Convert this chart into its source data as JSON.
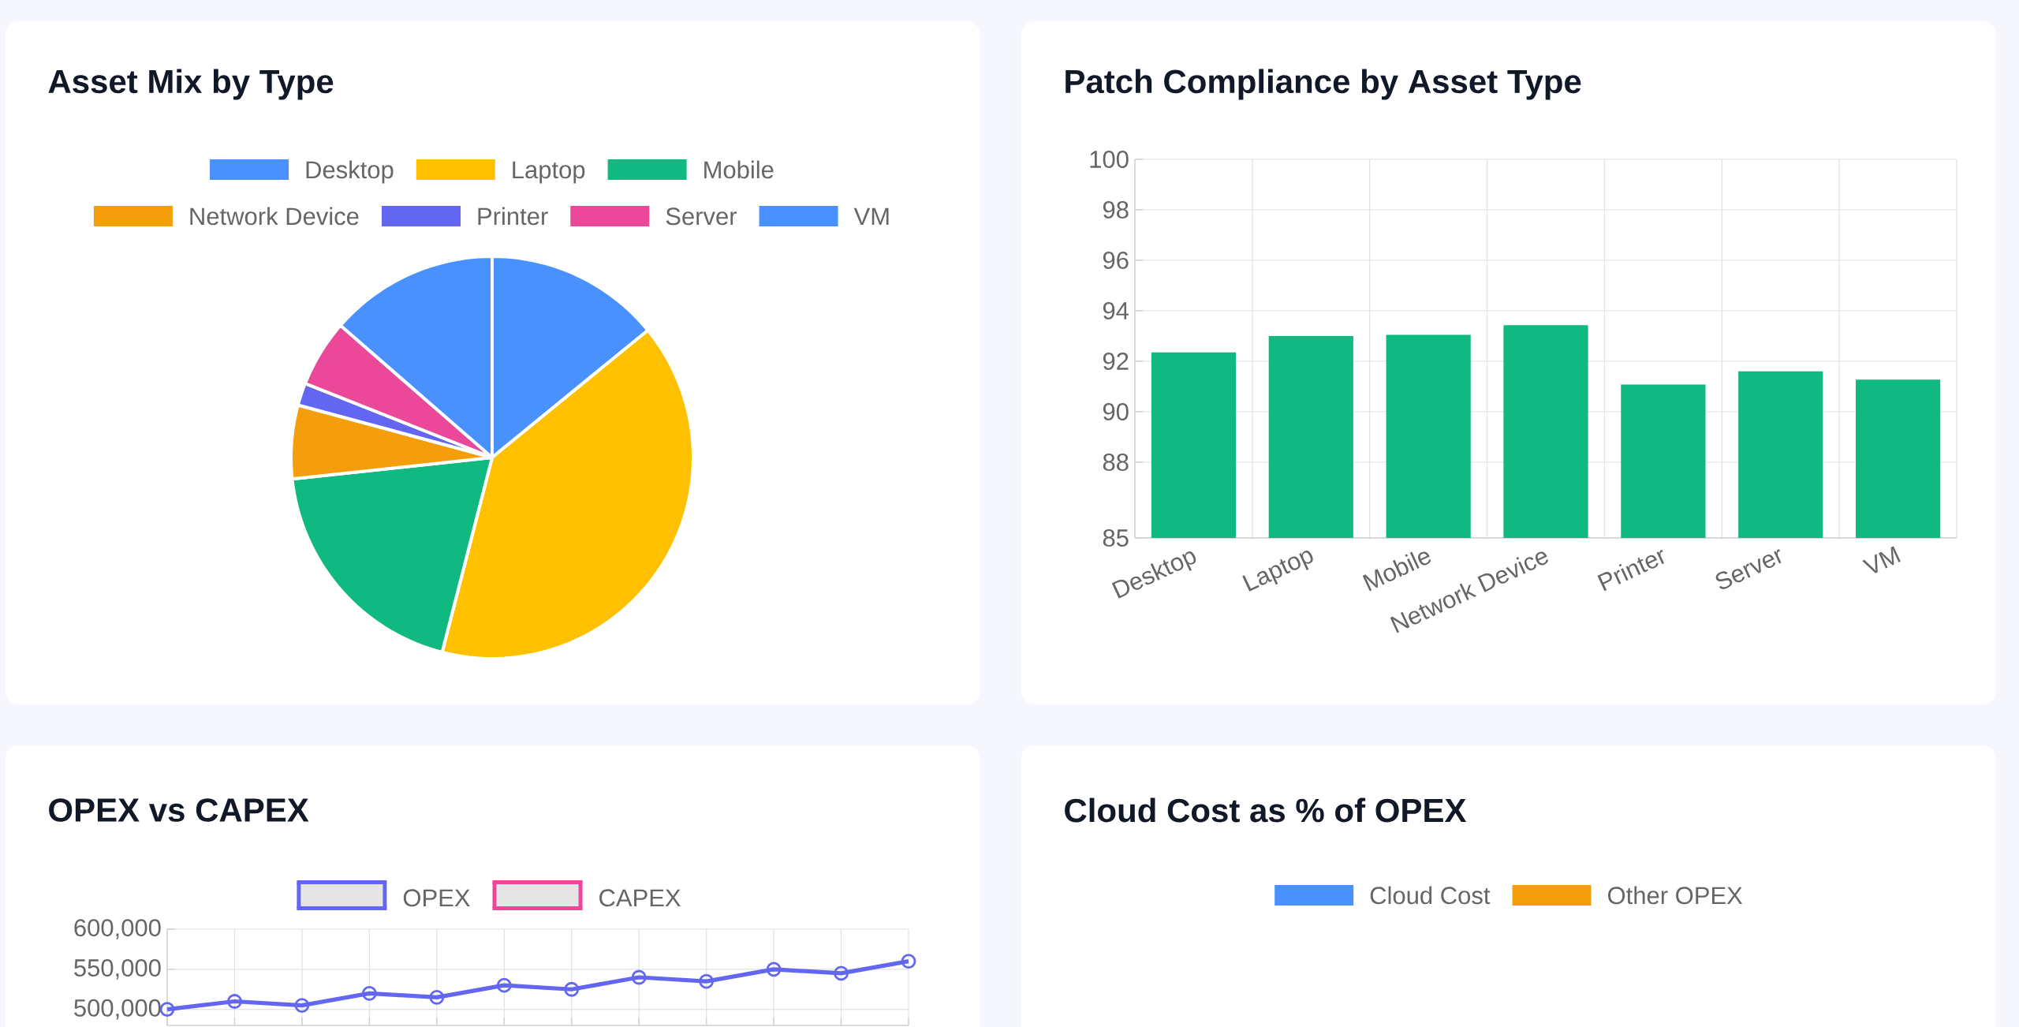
{
  "chart_data": [
    {
      "type": "pie",
      "title": "Asset Mix by Type",
      "categories": [
        "Desktop",
        "Laptop",
        "Mobile",
        "Network Device",
        "Printer",
        "Server",
        "VM"
      ],
      "values": [
        14.1,
        39.9,
        19.3,
        5.9,
        1.8,
        5.4,
        13.6
      ],
      "colors": [
        "#4891ff",
        "#ffc000",
        "#10b981",
        "#f59e0b",
        "#6366f1",
        "#ec4899",
        "#4891ff"
      ],
      "legend": "top"
    },
    {
      "type": "bar",
      "title": "Patch Compliance by Asset Type",
      "categories": [
        "Desktop",
        "Laptop",
        "Mobile",
        "Network Device",
        "Printer",
        "Server",
        "VM"
      ],
      "values": [
        92.35,
        93.0,
        93.05,
        93.43,
        91.08,
        91.6,
        91.27
      ],
      "color": "#10b981",
      "ylim": [
        85,
        100
      ],
      "yticks": [
        85,
        88,
        90,
        92,
        94,
        96,
        98,
        100
      ],
      "grid": true
    },
    {
      "type": "line",
      "title": "OPEX vs CAPEX",
      "categories": [
        null,
        null,
        null,
        null,
        null,
        null,
        null,
        null,
        null,
        null,
        null,
        null
      ],
      "series": [
        {
          "name": "OPEX",
          "color": "#6366f1",
          "values": [
            500000,
            510000,
            505000,
            520000,
            515000,
            530000,
            525000,
            540000,
            535000,
            550000,
            545000,
            560000
          ]
        },
        {
          "name": "CAPEX",
          "color": "#ec4899",
          "values": [
            null,
            null,
            null,
            null,
            null,
            null,
            null,
            null,
            null,
            null,
            null,
            null
          ]
        }
      ],
      "ylim": [
        480000,
        600000
      ],
      "yticks": [
        {
          "value": 500000,
          "label": "500,000"
        },
        {
          "value": 550000,
          "label": "550,000"
        },
        {
          "value": 600000,
          "label": "600,000"
        }
      ],
      "grid": true,
      "legend": "top",
      "marker": "circle",
      "line_style": "solid"
    },
    {
      "type": "other",
      "title": "Cloud Cost as % of OPEX",
      "categories": [
        "Cloud Cost",
        "Other OPEX"
      ],
      "colors": [
        "#4891ff",
        "#f59e0b"
      ]
    }
  ]
}
